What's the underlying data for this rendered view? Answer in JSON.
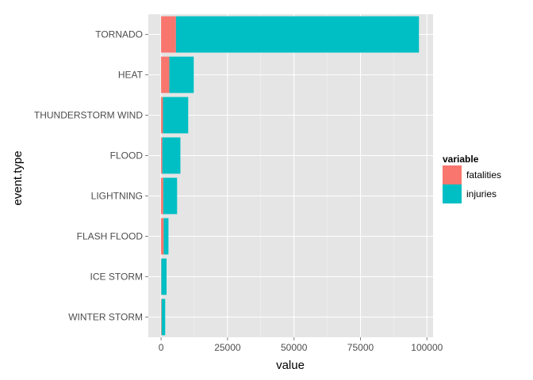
{
  "chart_data": {
    "type": "bar",
    "orientation": "horizontal",
    "stacked": true,
    "categories": [
      "TORNADO",
      "HEAT",
      "THUNDERSTORM WIND",
      "FLOOD",
      "LIGHTNING",
      "FLASH FLOOD",
      "ICE STORM",
      "WINTER STORM"
    ],
    "series": [
      {
        "name": "fatalities",
        "color": "#F8766D",
        "values": [
          5600,
          3100,
          700,
          470,
          820,
          980,
          90,
          210
        ]
      },
      {
        "name": "injuries",
        "color": "#00BFC4",
        "values": [
          91400,
          9200,
          9500,
          6800,
          5200,
          1800,
          1980,
          1340
        ]
      }
    ],
    "xlabel": "value",
    "ylabel": "event.type",
    "xlim": [
      -4800,
      102300
    ],
    "xticks": [
      0,
      25000,
      50000,
      75000,
      100000
    ],
    "xtick_labels": [
      "0",
      "25000",
      "50000",
      "75000",
      "100000"
    ],
    "legend_title": "variable",
    "legend_position": "right",
    "grid": true,
    "panel_background": "#E5E5E5"
  }
}
